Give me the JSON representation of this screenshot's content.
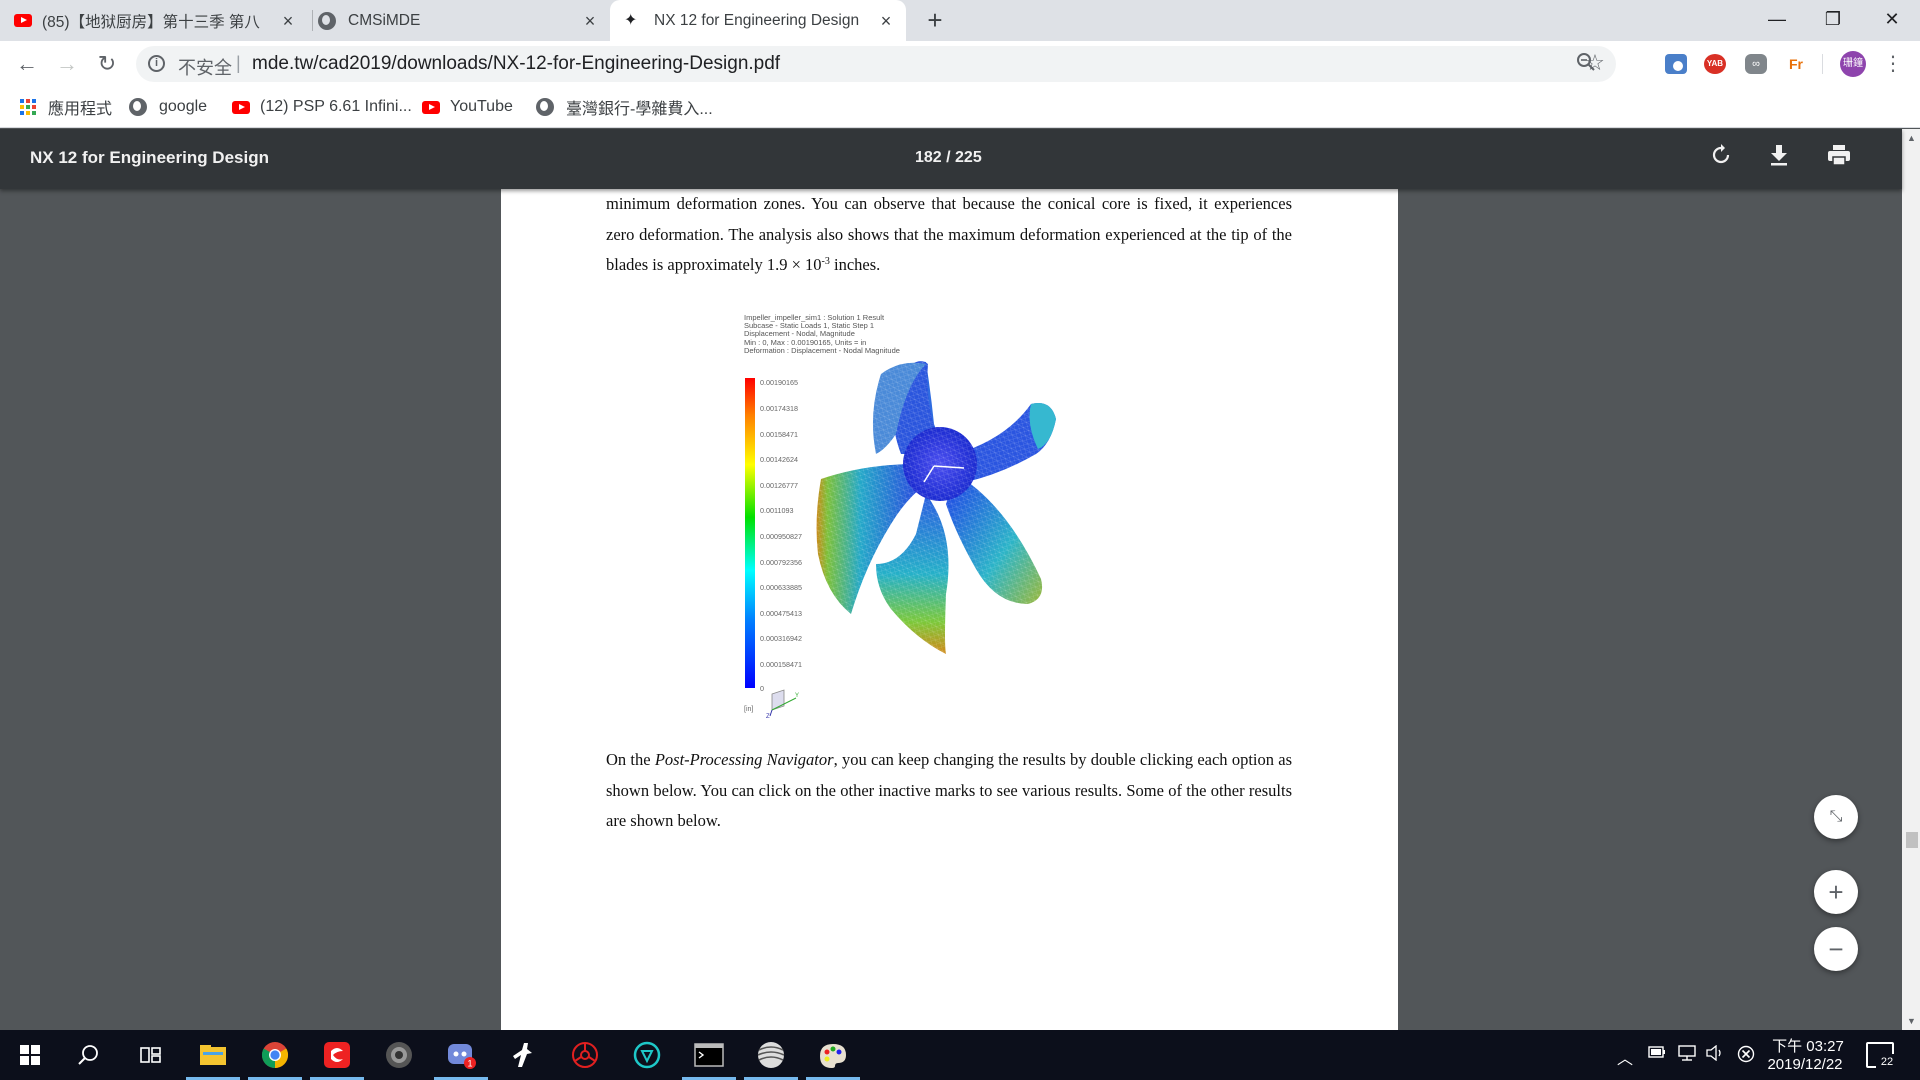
{
  "browser": {
    "tabs": [
      {
        "title": "(85)【地狱厨房】第十三季 第八",
        "icon": "youtube-icon",
        "active": false
      },
      {
        "title": "CMSiMDE",
        "icon": "globe-icon",
        "active": false
      },
      {
        "title": "NX 12 for Engineering Design",
        "icon": "squirrel-icon",
        "active": true
      }
    ],
    "new_tab": "+",
    "window_controls": {
      "minimize": "—",
      "maximize": "❐",
      "close": "✕"
    },
    "omnibox": {
      "security_label": "不安全",
      "separator": "|",
      "url": "mde.tw/cad2019/downloads/NX-12-for-Engineering-Design.pdf"
    },
    "extensions": [
      "camera-icon",
      "yab-icon",
      "loop-icon",
      "fr-icon"
    ],
    "yab_label": "YAB",
    "fr_label": "Fr",
    "loop_label": "∞",
    "profile_label": "珊鐘",
    "bookmarks": [
      {
        "label": "應用程式",
        "icon": "apps-icon"
      },
      {
        "label": "google",
        "icon": "globe-icon"
      },
      {
        "label": "(12) PSP 6.61 Infini...",
        "icon": "youtube-icon"
      },
      {
        "label": "YouTube",
        "icon": "youtube-icon"
      },
      {
        "label": "臺灣銀行-學雜費入...",
        "icon": "globe-icon"
      }
    ]
  },
  "pdf_viewer": {
    "title": "NX 12 for Engineering Design",
    "page_indicator": "182 / 225",
    "paragraph1": {
      "text_a": "minimum deformation zones. You can observe that because the conical core is fixed, it experiences zero deformation. The analysis also shows that the maximum deformation experienced at the tip of the blades is approximately 1.9 × 10",
      "superscript": "-3",
      "text_b": " inches."
    },
    "figure": {
      "header_lines": [
        "Impeller_impeller_sim1 : Solution 1 Result",
        "Subcase - Static Loads 1, Static Step 1",
        "Displacement - Nodal, Magnitude",
        "Min : 0, Max : 0.00190165, Units = in",
        "Deformation : Displacement - Nodal Magnitude"
      ],
      "legend_labels": [
        "0.00190165",
        "0.00174318",
        "0.00158471",
        "0.00142624",
        "0.00126777",
        "0.0011093",
        "0.000950827",
        "0.000792356",
        "0.000633885",
        "0.000475413",
        "0.000316942",
        "0.000158471",
        "0"
      ],
      "unit_label": "[in]",
      "axis_labels": {
        "y": "Y",
        "z": "Z"
      }
    },
    "paragraph2": {
      "lead": "On the ",
      "emphasis": "Post-Processing Navigator",
      "rest": ", you can keep changing the results by double clicking each option as shown below. You can click on the other inactive marks to see various results. Some of the other results are shown below."
    },
    "controls": {
      "fit": "⤡",
      "zoom_in": "+",
      "zoom_out": "−"
    }
  },
  "taskbar": {
    "apps": [
      "windows-start-icon",
      "search-icon",
      "task-view-icon",
      "file-explorer-icon",
      "chrome-icon",
      "garena-icon",
      "game-icon",
      "discord-icon",
      "csgo-icon",
      "resident-icon",
      "cloudapp-icon",
      "terminal-icon",
      "wave-icon",
      "paint-icon"
    ],
    "discord_badge": "1",
    "clock": {
      "time": "下午 03:27",
      "date": "2019/12/22"
    },
    "notification_count": "22"
  }
}
